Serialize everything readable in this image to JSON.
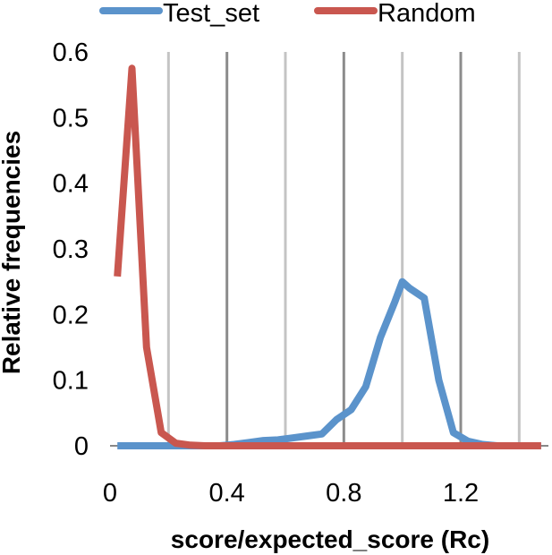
{
  "chart_data": {
    "type": "line",
    "xlabel": "score/expected_score (Rc)",
    "ylabel": "Relative frequencies",
    "xlim": [
      0,
      1.5
    ],
    "ylim": [
      0,
      0.6
    ],
    "xticks": [
      0,
      0.4,
      0.8,
      1.2
    ],
    "xtick_labels": [
      "0",
      "0.4",
      "0.8",
      "1.2"
    ],
    "yticks": [
      0,
      0.1,
      0.2,
      0.3,
      0.4,
      0.5,
      0.6
    ],
    "ytick_labels": [
      "0",
      "0.1",
      "0.2",
      "0.3",
      "0.4",
      "0.5",
      "0.6"
    ],
    "vertical_grid": true,
    "vertical_gridlines": [
      0.2,
      0.4,
      0.6,
      0.8,
      1.0,
      1.2,
      1.4
    ],
    "legend_position": "top",
    "series": [
      {
        "name": "Test_set",
        "color": "#5b93cb",
        "x": [
          0.025,
          0.075,
          0.125,
          0.175,
          0.225,
          0.275,
          0.325,
          0.375,
          0.425,
          0.475,
          0.525,
          0.575,
          0.625,
          0.675,
          0.725,
          0.775,
          0.825,
          0.875,
          0.925,
          0.975,
          1.0,
          1.025,
          1.075,
          1.125,
          1.175,
          1.225,
          1.275,
          1.325,
          1.375,
          1.425,
          1.475
        ],
        "y": [
          0,
          0,
          0,
          0,
          0,
          0,
          0,
          0,
          0.002,
          0.005,
          0.008,
          0.009,
          0.012,
          0.015,
          0.018,
          0.04,
          0.055,
          0.09,
          0.165,
          0.22,
          0.25,
          0.24,
          0.225,
          0.1,
          0.02,
          0.007,
          0.002,
          0,
          0,
          0,
          0
        ]
      },
      {
        "name": "Random",
        "color": "#c9574f",
        "x": [
          0.025,
          0.075,
          0.125,
          0.175,
          0.225,
          0.275,
          0.325,
          0.375,
          0.425,
          0.475,
          0.525,
          0.575,
          0.625,
          0.675,
          0.725,
          0.775,
          0.825,
          0.875,
          0.925,
          0.975,
          1.025,
          1.075,
          1.125,
          1.175,
          1.225,
          1.275,
          1.325,
          1.375,
          1.425,
          1.475
        ],
        "y": [
          0.258,
          0.575,
          0.15,
          0.02,
          0.004,
          0.001,
          0,
          0,
          0,
          0,
          0,
          0,
          0,
          0,
          0,
          0,
          0,
          0,
          0,
          0,
          0,
          0,
          0,
          0,
          0,
          0,
          0,
          0,
          0,
          0
        ]
      }
    ]
  }
}
